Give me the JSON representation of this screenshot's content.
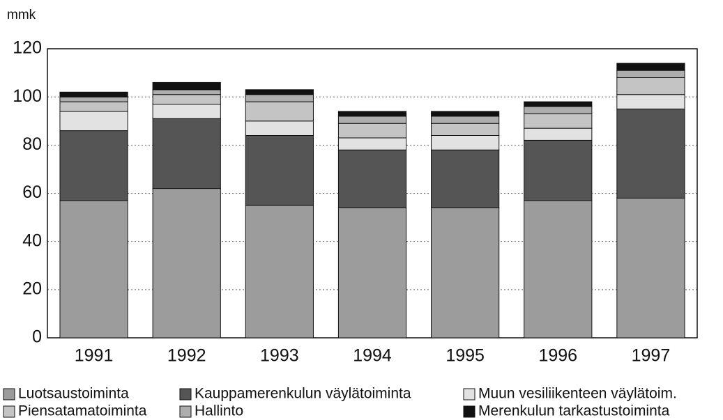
{
  "chart_data": {
    "type": "stacked_bar",
    "ylabel": "mmk",
    "categories": [
      "1991",
      "1992",
      "1993",
      "1994",
      "1995",
      "1996",
      "1997"
    ],
    "series": [
      {
        "name": "Luotsaustoiminta",
        "color": "#9c9c9c",
        "values": [
          57,
          62,
          55,
          54,
          54,
          57,
          58
        ]
      },
      {
        "name": "Kauppamerenkulun väylätoiminta",
        "color": "#555555",
        "values": [
          29,
          29,
          29,
          24,
          24,
          25,
          37
        ]
      },
      {
        "name": "Muun vesiliikenteen väylätoim.",
        "color": "#e2e2e2",
        "values": [
          8,
          6,
          6,
          5,
          6,
          5,
          6
        ]
      },
      {
        "name": "Piensatamatoiminta",
        "color": "#c4c4c4",
        "values": [
          4,
          4,
          8,
          6,
          5,
          6,
          7
        ]
      },
      {
        "name": "Hallinto",
        "color": "#adadad",
        "values": [
          2,
          2,
          3,
          3,
          3,
          3,
          3
        ]
      },
      {
        "name": "Merenkulun tarkastustoiminta",
        "color": "#111111",
        "values": [
          2,
          3,
          2,
          2,
          2,
          2,
          3
        ]
      }
    ],
    "ylim": [
      0,
      120
    ],
    "yticks": [
      0,
      20,
      40,
      60,
      80,
      100,
      120
    ],
    "grid": true
  }
}
